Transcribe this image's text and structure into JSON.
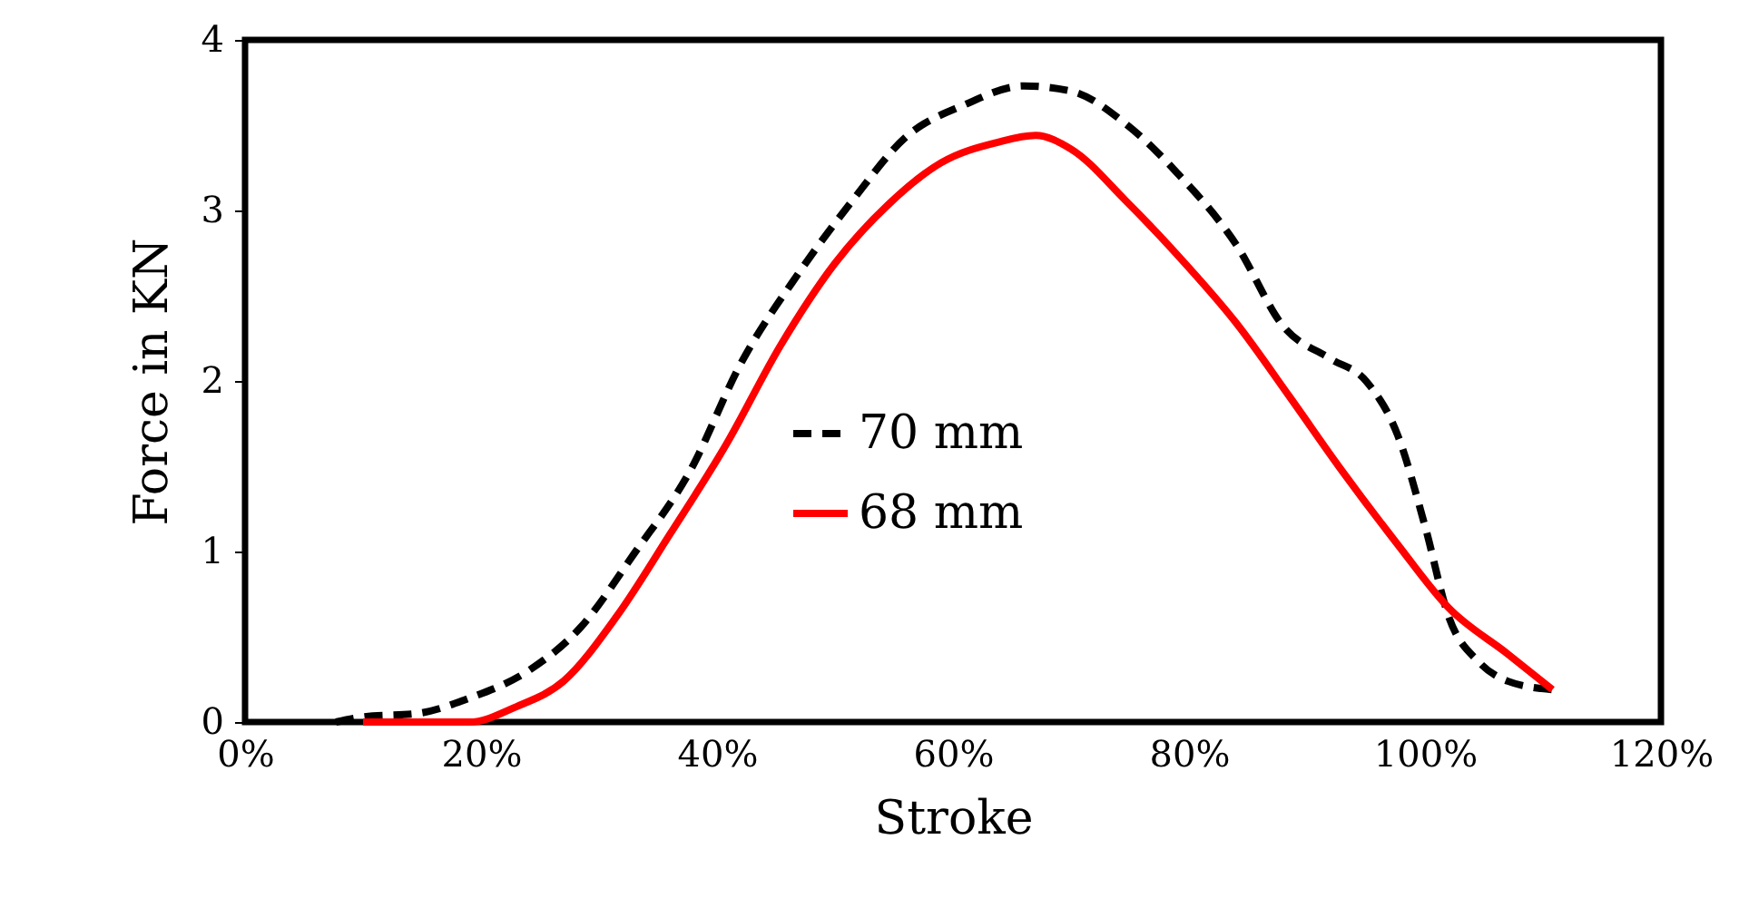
{
  "chart_data": {
    "type": "line",
    "xlabel": "Stroke",
    "ylabel": "Force  in KN",
    "xlim": [
      0,
      1.2
    ],
    "xticks": [
      {
        "value": 0,
        "label": "0%"
      },
      {
        "value": 0.2,
        "label": "20%"
      },
      {
        "value": 0.4,
        "label": "40%"
      },
      {
        "value": 0.6,
        "label": "60%"
      },
      {
        "value": 0.8,
        "label": "80%"
      },
      {
        "value": 1,
        "label": "100%"
      },
      {
        "value": 1.2,
        "label": "120%"
      }
    ],
    "ylim": [
      0,
      4
    ],
    "yticks": [
      0,
      1,
      2,
      3,
      4
    ],
    "grid": false,
    "legend": "center",
    "marker": "none",
    "series": [
      {
        "name": "70 mm",
        "color": "#000000",
        "line_style": "dashed",
        "x": [
          0.077,
          0.1,
          0.146,
          0.19,
          0.24,
          0.285,
          0.33,
          0.377,
          0.42,
          0.47,
          0.515,
          0.56,
          0.61,
          0.66,
          0.7,
          0.746,
          0.79,
          0.84,
          0.88,
          0.92,
          0.95,
          0.977,
          1.0,
          1.02,
          1.046,
          1.07,
          1.108
        ],
        "values": [
          0,
          0.03,
          0.05,
          0.14,
          0.3,
          0.56,
          0.99,
          1.47,
          2.1,
          2.64,
          3.06,
          3.43,
          3.62,
          3.73,
          3.7,
          3.51,
          3.22,
          2.8,
          2.32,
          2.13,
          2.0,
          1.68,
          1.15,
          0.62,
          0.35,
          0.24,
          0.19
        ]
      },
      {
        "name": "68 mm",
        "color": "#ff0000",
        "line_style": "solid",
        "x": [
          0.1,
          0.19,
          0.23,
          0.27,
          0.315,
          0.36,
          0.408,
          0.454,
          0.5,
          0.546,
          0.59,
          0.638,
          0.67,
          0.7,
          0.746,
          0.79,
          0.84,
          0.885,
          0.93,
          0.977,
          1.02,
          1.07,
          1.108
        ],
        "values": [
          0,
          0,
          0.09,
          0.24,
          0.62,
          1.1,
          1.63,
          2.21,
          2.69,
          3.04,
          3.28,
          3.4,
          3.44,
          3.36,
          3.06,
          2.74,
          2.34,
          1.91,
          1.47,
          1.04,
          0.67,
          0.4,
          0.19
        ]
      }
    ]
  }
}
